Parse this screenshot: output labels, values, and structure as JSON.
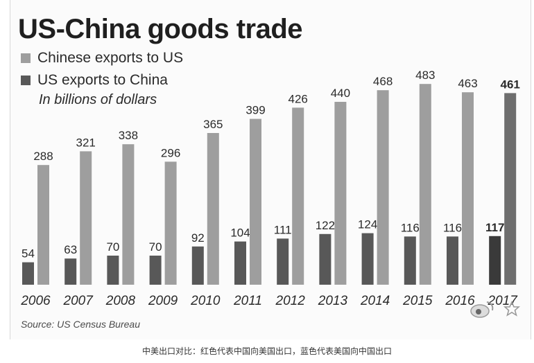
{
  "title": "US-China goods trade",
  "unit_label": "In billions of dollars",
  "source": "Source: US Census Bureau",
  "caption": "中美出口对比：红色代表中国向美国出口，蓝色代表美国向中国出口",
  "colors": {
    "chinese_exports": "#9e9e9e",
    "us_exports": "#585858",
    "latest_us_exports": "#3a3a3a",
    "latest_chinese_exports": "#6e6e6e",
    "label_text": "#2a2a2a",
    "title_text": "#1f1f1f"
  },
  "legend": [
    {
      "label": "Chinese exports to US",
      "color": "#9e9e9e"
    },
    {
      "label": "US exports to China",
      "color": "#585858"
    }
  ],
  "chart_data": {
    "type": "bar",
    "title": "US-China goods trade",
    "ylabel": "In billions of dollars",
    "categories": [
      "2006",
      "2007",
      "2008",
      "2009",
      "2010",
      "2011",
      "2012",
      "2013",
      "2014",
      "2015",
      "2016",
      "2017"
    ],
    "series": [
      {
        "name": "US exports to China",
        "values": [
          54,
          63,
          70,
          70,
          92,
          104,
          111,
          122,
          124,
          116,
          116,
          117
        ]
      },
      {
        "name": "Chinese exports to US",
        "values": [
          288,
          321,
          338,
          296,
          365,
          399,
          426,
          440,
          468,
          483,
          463,
          461
        ]
      }
    ],
    "ylim": [
      0,
      500
    ],
    "grid": false,
    "legend_position": "top-left",
    "highlighted_category": "2017"
  }
}
